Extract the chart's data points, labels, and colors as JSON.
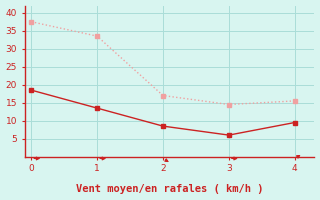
{
  "x": [
    0,
    1,
    2,
    3,
    4
  ],
  "y_rafales": [
    37.5,
    33.5,
    17.0,
    14.5,
    15.5
  ],
  "y_moyen": [
    18.5,
    13.5,
    8.5,
    6.0,
    9.5
  ],
  "color_rafales": "#f0a0a0",
  "color_moyen": "#cc2222",
  "xlabel": "Vent moyen/en rafales ( km/h )",
  "xlabel_color": "#cc2222",
  "background_color": "#d8f5f0",
  "grid_color": "#aaddd8",
  "axis_color": "#888888",
  "tick_color": "#cc2222",
  "ylim": [
    0,
    42
  ],
  "xlim": [
    -0.1,
    4.3
  ],
  "yticks": [
    5,
    10,
    15,
    20,
    25,
    30,
    35,
    40
  ],
  "xticks": [
    0,
    1,
    2,
    3,
    4
  ],
  "arrow_dirs": [
    0,
    0,
    -45,
    0,
    45
  ]
}
